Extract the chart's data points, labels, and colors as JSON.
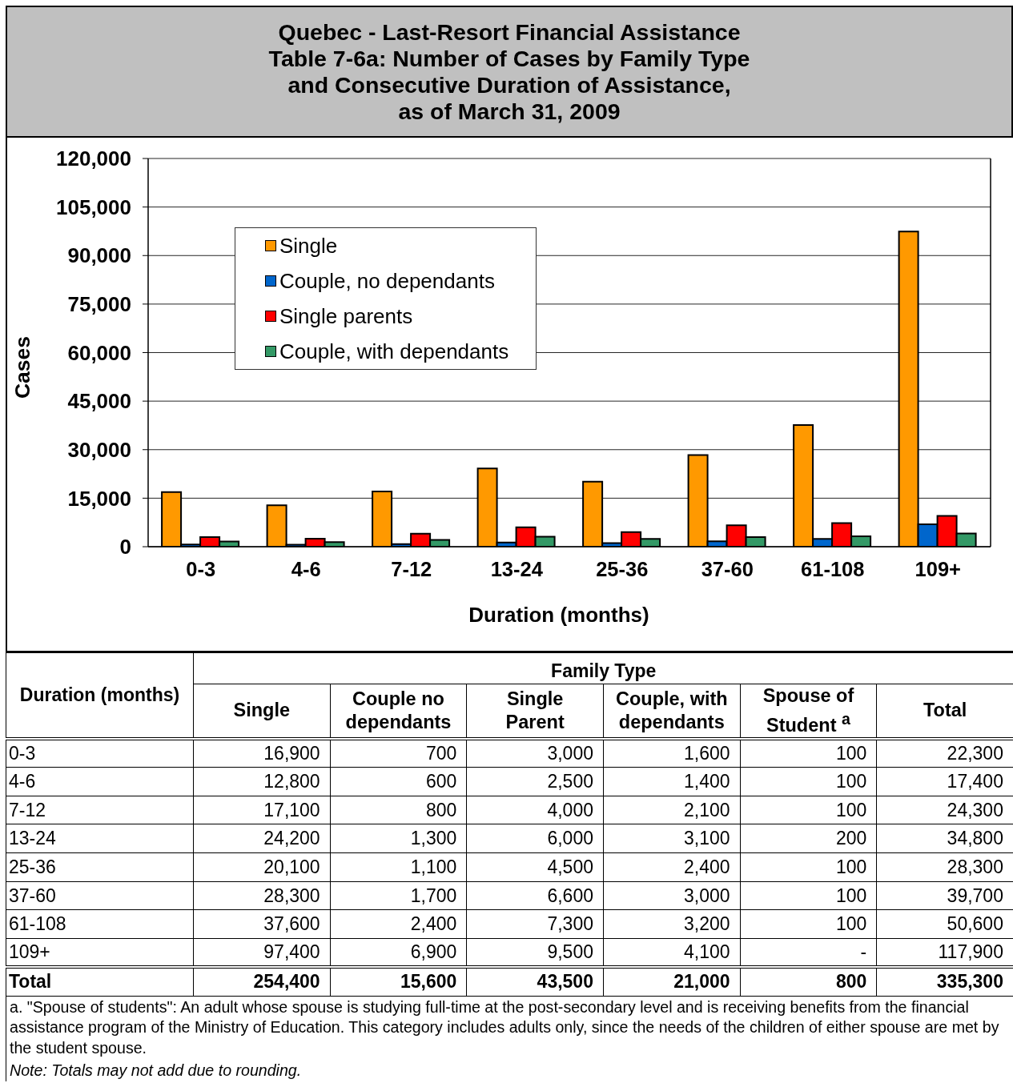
{
  "chart_data": [
    {
      "type": "bar",
      "title": "Quebec - Last-Resort Financial Assistance\nTable 7-6a: Number of Cases by Family Type\nand Consecutive Duration of Assistance,\nas of March 31, 2009",
      "xlabel": "Duration (months)",
      "ylabel": "Cases",
      "categories": [
        "0-3",
        "4-6",
        "7-12",
        "13-24",
        "25-36",
        "37-60",
        "61-108",
        "109+"
      ],
      "series": [
        {
          "name": "Single",
          "color": "#ff9900",
          "values": [
            16900,
            12800,
            17100,
            24200,
            20100,
            28300,
            37600,
            97400
          ]
        },
        {
          "name": "Couple, no dependants",
          "color": "#0066cc",
          "values": [
            700,
            600,
            800,
            1300,
            1100,
            1700,
            2400,
            6900
          ]
        },
        {
          "name": "Single parents",
          "color": "#ff0000",
          "values": [
            3000,
            2500,
            4000,
            6000,
            4500,
            6600,
            7300,
            9500
          ]
        },
        {
          "name": "Couple, with dependants",
          "color": "#339966",
          "values": [
            1600,
            1400,
            2100,
            3100,
            2400,
            3000,
            3200,
            4100
          ]
        }
      ],
      "ylim": [
        0,
        120000
      ],
      "yticks": [
        0,
        {
          "value": 15000,
          "label": "15,000"
        },
        {
          "value": 30000,
          "label": "30,000"
        },
        {
          "value": 45000,
          "label": "45,000"
        },
        {
          "value": 60000,
          "label": "60,000"
        },
        {
          "value": 75000,
          "label": "75,000"
        },
        {
          "value": 90000,
          "label": "90,000"
        },
        {
          "value": 105000,
          "label": "105,000"
        },
        {
          "value": 120000,
          "label": "120,000"
        }
      ],
      "grid": "y",
      "legend": "top left"
    },
    {
      "type": "other",
      "ylabel": "Duration (months)",
      "legend_title": "Family Type",
      "categories": [
        "0-3",
        "4-6",
        "7-12",
        "13-24",
        "25-36",
        "37-60",
        "61-108",
        "109+",
        "Total"
      ],
      "series": [
        {
          "name": "Single",
          "values": [
            16900,
            12800,
            17100,
            24200,
            20100,
            28300,
            37600,
            97400,
            254400
          ],
          "value_labels": [
            "16,900",
            "12,800",
            "17,100",
            "24,200",
            "20,100",
            "28,300",
            "37,600",
            "97,400",
            "254,400"
          ]
        },
        {
          "name": "Couple no dependants",
          "values": [
            700,
            600,
            800,
            1300,
            1100,
            1700,
            2400,
            6900,
            15600
          ],
          "value_labels": [
            "700",
            "600",
            "800",
            "1,300",
            "1,100",
            "1,700",
            "2,400",
            "6,900",
            "15,600"
          ]
        },
        {
          "name": "Single Parent",
          "values": [
            3000,
            2500,
            4000,
            6000,
            4500,
            6600,
            7300,
            9500,
            43500
          ],
          "value_labels": [
            "3,000",
            "2,500",
            "4,000",
            "6,000",
            "4,500",
            "6,600",
            "7,300",
            "9,500",
            "43,500"
          ]
        },
        {
          "name": "Couple, with dependants",
          "values": [
            1600,
            1400,
            2100,
            3100,
            2400,
            3000,
            3200,
            4100,
            21000
          ],
          "value_labels": [
            "1,600",
            "1,400",
            "2,100",
            "3,100",
            "2,400",
            "3,000",
            "3,200",
            "4,100",
            "21,000"
          ]
        },
        {
          "name": "Spouse of Student $^{a}$",
          "values": [
            100,
            100,
            100,
            200,
            100,
            100,
            100,
            null,
            800
          ],
          "value_labels": [
            "100",
            "100",
            "100",
            "200",
            "100",
            "100",
            "100",
            "-",
            "800"
          ]
        },
        {
          "name": "Total",
          "values": [
            22300,
            17400,
            24300,
            34800,
            28300,
            39700,
            50600,
            117900,
            335300
          ],
          "value_labels": [
            "22,300",
            "17,400",
            "24,300",
            "34,800",
            "28,300",
            "39,700",
            "50,600",
            "117,900",
            "335,300"
          ]
        }
      ],
      "annotations": [
        "a. \"Spouse of students\": An adult whose spouse is studying full-time at the post-secondary level and is receiving benefits from the financial assistance program of the Ministry of Education. This category includes adults only, since the needs of the children of either spouse are met by the student spouse.",
        "Note: Totals may not add due to rounding."
      ]
    }
  ]
}
